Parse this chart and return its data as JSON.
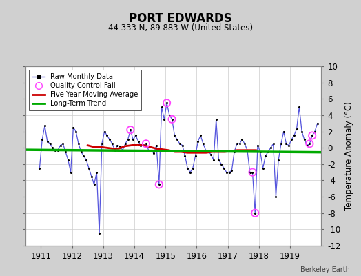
{
  "title": "PORT EDWARDS",
  "subtitle": "44.333 N, 89.883 W (United States)",
  "ylabel": "Temperature Anomaly (°C)",
  "credit": "Berkeley Earth",
  "ylim": [
    -12,
    10
  ],
  "yticks": [
    -12,
    -10,
    -8,
    -6,
    -4,
    -2,
    0,
    2,
    4,
    6,
    8,
    10
  ],
  "xlim_start": 1910.5,
  "xlim_end": 1920.0,
  "xticks": [
    1911,
    1912,
    1913,
    1914,
    1915,
    1916,
    1917,
    1918,
    1919
  ],
  "bg_color": "#d0d0d0",
  "plot_bg_color": "#ffffff",
  "raw_data_color": "#5555dd",
  "raw_dot_color": "#000000",
  "ma_color": "#cc0000",
  "trend_color": "#00aa00",
  "qc_color": "#ff44ff",
  "monthly_data": [
    [
      1910.958,
      -2.5
    ],
    [
      1911.042,
      1.0
    ],
    [
      1911.125,
      2.7
    ],
    [
      1911.208,
      0.8
    ],
    [
      1911.292,
      0.5
    ],
    [
      1911.375,
      0.0
    ],
    [
      1911.458,
      -0.3
    ],
    [
      1911.542,
      -0.3
    ],
    [
      1911.625,
      0.3
    ],
    [
      1911.708,
      0.5
    ],
    [
      1911.792,
      -0.5
    ],
    [
      1911.875,
      -1.5
    ],
    [
      1911.958,
      -3.0
    ],
    [
      1912.042,
      2.5
    ],
    [
      1912.125,
      2.0
    ],
    [
      1912.208,
      0.5
    ],
    [
      1912.292,
      -0.5
    ],
    [
      1912.375,
      -1.0
    ],
    [
      1912.458,
      -1.5
    ],
    [
      1912.542,
      -2.5
    ],
    [
      1912.625,
      -3.5
    ],
    [
      1912.708,
      -4.5
    ],
    [
      1912.792,
      -3.0
    ],
    [
      1912.875,
      -10.5
    ],
    [
      1912.958,
      0.5
    ],
    [
      1913.042,
      2.0
    ],
    [
      1913.125,
      1.5
    ],
    [
      1913.208,
      1.0
    ],
    [
      1913.292,
      0.5
    ],
    [
      1913.375,
      -0.3
    ],
    [
      1913.458,
      0.3
    ],
    [
      1913.542,
      0.2
    ],
    [
      1913.625,
      -0.3
    ],
    [
      1913.708,
      0.5
    ],
    [
      1913.792,
      1.0
    ],
    [
      1913.875,
      2.2
    ],
    [
      1913.958,
      1.0
    ],
    [
      1914.042,
      1.5
    ],
    [
      1914.125,
      0.8
    ],
    [
      1914.208,
      0.3
    ],
    [
      1914.292,
      0.3
    ],
    [
      1914.375,
      0.5
    ],
    [
      1914.458,
      -0.3
    ],
    [
      1914.542,
      -0.3
    ],
    [
      1914.625,
      -0.7
    ],
    [
      1914.708,
      0.3
    ],
    [
      1914.792,
      -4.5
    ],
    [
      1914.875,
      5.0
    ],
    [
      1914.958,
      3.5
    ],
    [
      1915.042,
      5.5
    ],
    [
      1915.125,
      4.0
    ],
    [
      1915.208,
      3.5
    ],
    [
      1915.292,
      1.5
    ],
    [
      1915.375,
      1.0
    ],
    [
      1915.458,
      0.5
    ],
    [
      1915.542,
      0.3
    ],
    [
      1915.625,
      -1.0
    ],
    [
      1915.708,
      -2.5
    ],
    [
      1915.792,
      -3.0
    ],
    [
      1915.875,
      -2.5
    ],
    [
      1915.958,
      -1.0
    ],
    [
      1916.042,
      0.8
    ],
    [
      1916.125,
      1.5
    ],
    [
      1916.208,
      0.5
    ],
    [
      1916.292,
      -0.3
    ],
    [
      1916.375,
      -0.5
    ],
    [
      1916.458,
      -0.8
    ],
    [
      1916.542,
      -1.5
    ],
    [
      1916.625,
      3.5
    ],
    [
      1916.708,
      -1.5
    ],
    [
      1916.792,
      -2.0
    ],
    [
      1916.875,
      -2.5
    ],
    [
      1916.958,
      -3.0
    ],
    [
      1917.042,
      -3.0
    ],
    [
      1917.125,
      -2.8
    ],
    [
      1917.208,
      -0.5
    ],
    [
      1917.292,
      0.5
    ],
    [
      1917.375,
      0.5
    ],
    [
      1917.458,
      1.0
    ],
    [
      1917.542,
      0.5
    ],
    [
      1917.625,
      -0.3
    ],
    [
      1917.708,
      -3.0
    ],
    [
      1917.792,
      -3.0
    ],
    [
      1917.875,
      -8.0
    ],
    [
      1917.958,
      0.3
    ],
    [
      1918.042,
      -0.5
    ],
    [
      1918.125,
      -2.5
    ],
    [
      1918.208,
      -1.0
    ],
    [
      1918.292,
      -0.5
    ],
    [
      1918.375,
      0.0
    ],
    [
      1918.458,
      0.5
    ],
    [
      1918.542,
      -6.0
    ],
    [
      1918.625,
      -1.5
    ],
    [
      1918.708,
      0.5
    ],
    [
      1918.792,
      2.0
    ],
    [
      1918.875,
      0.5
    ],
    [
      1918.958,
      0.3
    ],
    [
      1919.042,
      1.0
    ],
    [
      1919.125,
      1.5
    ],
    [
      1919.208,
      2.3
    ],
    [
      1919.292,
      5.0
    ],
    [
      1919.375,
      2.0
    ],
    [
      1919.458,
      1.0
    ],
    [
      1919.542,
      0.3
    ],
    [
      1919.625,
      0.5
    ],
    [
      1919.708,
      1.5
    ],
    [
      1919.792,
      2.0
    ],
    [
      1919.875,
      3.0
    ]
  ],
  "qc_fail_points": [
    [
      1913.875,
      2.2
    ],
    [
      1914.375,
      0.5
    ],
    [
      1914.792,
      -4.5
    ],
    [
      1915.042,
      5.5
    ],
    [
      1915.208,
      3.5
    ],
    [
      1917.792,
      -3.0
    ],
    [
      1917.875,
      -8.0
    ],
    [
      1919.625,
      0.5
    ],
    [
      1919.708,
      1.5
    ]
  ],
  "moving_avg": [
    [
      1912.5,
      0.3
    ],
    [
      1912.7,
      0.1
    ],
    [
      1912.9,
      0.1
    ],
    [
      1913.1,
      0.0
    ],
    [
      1913.3,
      -0.1
    ],
    [
      1913.5,
      -0.1
    ],
    [
      1913.7,
      0.2
    ],
    [
      1913.9,
      0.3
    ],
    [
      1914.1,
      0.4
    ],
    [
      1914.3,
      0.3
    ],
    [
      1914.5,
      0.1
    ],
    [
      1914.7,
      -0.1
    ],
    [
      1914.9,
      -0.2
    ],
    [
      1915.1,
      -0.3
    ],
    [
      1915.3,
      -0.5
    ],
    [
      1915.5,
      -0.5
    ],
    [
      1915.7,
      -0.6
    ],
    [
      1915.9,
      -0.6
    ],
    [
      1916.1,
      -0.6
    ],
    [
      1916.3,
      -0.6
    ],
    [
      1916.5,
      -0.5
    ],
    [
      1916.7,
      -0.5
    ],
    [
      1916.9,
      -0.5
    ],
    [
      1917.1,
      -0.4
    ],
    [
      1917.3,
      -0.3
    ],
    [
      1917.5,
      -0.3
    ],
    [
      1917.7,
      -0.3
    ],
    [
      1917.9,
      -0.3
    ]
  ],
  "trend_x": [
    1910.5,
    1920.0
  ],
  "trend_y": [
    -0.25,
    -0.55
  ]
}
